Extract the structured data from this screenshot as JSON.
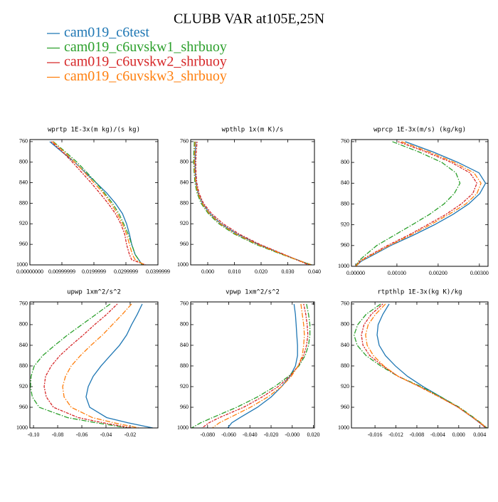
{
  "title": "CLUBB VAR at105E,25N",
  "chart_data": [
    {
      "type": "line",
      "title": "wprtp  1E-3x(m kg)/(s kg)",
      "y": [
        760,
        780,
        800,
        820,
        840,
        860,
        880,
        900,
        920,
        940,
        960,
        980,
        990,
        1000
      ],
      "ylim": [
        756,
        1000
      ],
      "y_inverted": true,
      "yticks": [
        760,
        800,
        840,
        880,
        920,
        960,
        1000
      ],
      "xlim": [
        0,
        0.04
      ],
      "xticks": [
        {
          "value": 0,
          "label": "0.00000000"
        },
        {
          "value": 0.01,
          "label": "0.00999999"
        },
        {
          "value": 0.02,
          "label": "0.0199999"
        },
        {
          "value": 0.03,
          "label": "0.0299999"
        },
        {
          "value": 0.04,
          "label": "0.0399999"
        }
      ],
      "series": [
        {
          "name": "cam019_c6test",
          "color": "#1f77b4",
          "linestyle": "solid",
          "values": [
            0.0062,
            0.01,
            0.014,
            0.0173,
            0.0207,
            0.024,
            0.0267,
            0.0289,
            0.0302,
            0.0311,
            0.0318,
            0.0329,
            0.034,
            0.0351
          ]
        },
        {
          "name": "cam019_c6uvskw1_shrbuoy",
          "color": "#2ca02c",
          "linestyle": "dashdot",
          "values": [
            0.0073,
            0.0111,
            0.0147,
            0.0178,
            0.0207,
            0.0233,
            0.0258,
            0.0278,
            0.0293,
            0.0307,
            0.0318,
            0.0329,
            0.034,
            0.0351
          ]
        },
        {
          "name": "cam019_c6uvskw2_shrbuoy",
          "color": "#d62728",
          "linestyle": "dotted",
          "values": [
            0.0067,
            0.0102,
            0.0133,
            0.0162,
            0.0191,
            0.0218,
            0.0244,
            0.0267,
            0.0284,
            0.0296,
            0.0302,
            0.0311,
            0.0318,
            0.0362
          ]
        },
        {
          "name": "cam019_c6uvskw3_shrbuoy",
          "color": "#ff7f0e",
          "linestyle": "dashdot",
          "values": [
            0.0071,
            0.0107,
            0.014,
            0.0171,
            0.02,
            0.0229,
            0.0253,
            0.0273,
            0.0289,
            0.0302,
            0.0311,
            0.032,
            0.0329,
            0.0358
          ]
        }
      ]
    },
    {
      "type": "line",
      "title": "wpthlp  1x(m K)/s",
      "y": [
        760,
        780,
        800,
        820,
        840,
        860,
        880,
        900,
        920,
        940,
        960,
        980,
        990,
        1000
      ],
      "ylim": [
        756,
        1000
      ],
      "y_inverted": true,
      "yticks": [
        760,
        800,
        840,
        880,
        920,
        960,
        1000
      ],
      "xlim": [
        -0.0064,
        0.04
      ],
      "xticks": [
        {
          "value": 0,
          "label": "0.000"
        },
        {
          "value": 0.01,
          "label": "0.010"
        },
        {
          "value": 0.02,
          "label": "0.020"
        },
        {
          "value": 0.03,
          "label": "0.030"
        },
        {
          "value": 0.04,
          "label": "0.040"
        }
      ],
      "series": [
        {
          "name": "cam019_c6test",
          "color": "#1f77b4",
          "linestyle": "solid",
          "values": [
            -0.0045,
            -0.0047,
            -0.0048,
            -0.0047,
            -0.0044,
            -0.0036,
            -0.002,
            0.0008,
            0.005,
            0.011,
            0.019,
            0.0285,
            0.0335,
            0.0385
          ]
        },
        {
          "name": "cam019_c6uvskw1_shrbuoy",
          "color": "#2ca02c",
          "linestyle": "dashdot",
          "values": [
            -0.005,
            -0.0052,
            -0.0053,
            -0.0051,
            -0.0048,
            -0.004,
            -0.0025,
            0.0002,
            0.0042,
            0.01,
            0.018,
            0.028,
            0.0332,
            0.039
          ]
        },
        {
          "name": "cam019_c6uvskw2_shrbuoy",
          "color": "#d62728",
          "linestyle": "dotted",
          "values": [
            -0.004,
            -0.0043,
            -0.0045,
            -0.0044,
            -0.0041,
            -0.0033,
            -0.0016,
            0.0014,
            0.0058,
            0.0118,
            0.0195,
            0.0288,
            0.0333,
            0.0378
          ]
        },
        {
          "name": "cam019_c6uvskw3_shrbuoy",
          "color": "#ff7f0e",
          "linestyle": "dashdot",
          "values": [
            -0.0047,
            -0.0049,
            -0.005,
            -0.0049,
            -0.0045,
            -0.0037,
            -0.0021,
            0.0006,
            0.0047,
            0.0106,
            0.0186,
            0.0283,
            0.0334,
            0.0388
          ]
        }
      ]
    },
    {
      "type": "line",
      "title": "wprcp  1E-3x(m/s) (kg/kg)",
      "y": [
        760,
        780,
        800,
        820,
        840,
        860,
        880,
        900,
        920,
        940,
        960,
        980,
        990,
        1000
      ],
      "ylim": [
        756,
        1000
      ],
      "y_inverted": true,
      "yticks": [
        760,
        800,
        840,
        880,
        920,
        960,
        1000
      ],
      "xlim": [
        -0.000103,
        0.00321
      ],
      "xticks": [
        {
          "value": 0,
          "label": "0.00000"
        },
        {
          "value": 0.001,
          "label": "0.00100"
        },
        {
          "value": 0.002,
          "label": "0.00200"
        },
        {
          "value": 0.003,
          "label": "0.00300"
        }
      ],
      "series": [
        {
          "name": "cam019_c6test",
          "color": "#1f77b4",
          "linestyle": "solid",
          "values": [
            0.0012,
            0.00188,
            0.00248,
            0.00299,
            0.00315,
            0.00301,
            0.00274,
            0.00236,
            0.00191,
            0.0014,
            0.00085,
            0.00038,
            0.00014,
            0.0
          ]
        },
        {
          "name": "cam019_c6uvskw1_shrbuoy",
          "color": "#2ca02c",
          "linestyle": "dashdot",
          "values": [
            0.00089,
            0.00154,
            0.00209,
            0.00243,
            0.00253,
            0.00239,
            0.00214,
            0.00179,
            0.00137,
            0.00094,
            0.00051,
            0.00021,
            7e-05,
            0.0
          ]
        },
        {
          "name": "cam019_c6uvskw2_shrbuoy",
          "color": "#d62728",
          "linestyle": "dotted",
          "values": [
            0.00103,
            0.00171,
            0.00232,
            0.00277,
            0.00294,
            0.00284,
            0.00256,
            0.00219,
            0.00174,
            0.00128,
            0.00077,
            0.00031,
            0.0001,
            0.0
          ]
        },
        {
          "name": "cam019_c6uvskw3_shrbuoy",
          "color": "#ff7f0e",
          "linestyle": "dashdot",
          "values": [
            0.00111,
            0.00179,
            0.00239,
            0.00287,
            0.00304,
            0.00294,
            0.00267,
            0.00226,
            0.00181,
            0.00133,
            0.00082,
            0.00034,
            0.00012,
            0.0
          ]
        }
      ]
    },
    {
      "type": "line",
      "title": "upwp  1xm^2/s^2",
      "y": [
        760,
        780,
        800,
        820,
        840,
        860,
        880,
        900,
        920,
        940,
        960,
        980,
        990,
        1000
      ],
      "ylim": [
        756,
        1000
      ],
      "y_inverted": true,
      "yticks": [
        760,
        800,
        840,
        880,
        920,
        960,
        1000
      ],
      "xlim": [
        -0.103,
        0.003
      ],
      "xticks": [
        {
          "value": -0.1,
          "label": "-0.10"
        },
        {
          "value": -0.08,
          "label": "-0.08"
        },
        {
          "value": -0.06,
          "label": "-0.06"
        },
        {
          "value": -0.04,
          "label": "-0.04"
        },
        {
          "value": -0.02,
          "label": "-0.02"
        }
      ],
      "series": [
        {
          "name": "cam019_c6test",
          "color": "#1f77b4",
          "linestyle": "solid",
          "values": [
            -0.01,
            -0.0141,
            -0.0188,
            -0.0229,
            -0.0288,
            -0.0365,
            -0.0441,
            -0.0506,
            -0.0547,
            -0.0565,
            -0.0535,
            -0.0394,
            -0.0218,
            -0.0012
          ]
        },
        {
          "name": "cam019_c6uvskw1_shrbuoy",
          "color": "#2ca02c",
          "linestyle": "dashdot",
          "values": [
            -0.0365,
            -0.0482,
            -0.06,
            -0.0718,
            -0.0824,
            -0.0924,
            -0.0994,
            -0.102,
            -0.1025,
            -0.101,
            -0.0953,
            -0.0718,
            -0.0482,
            -0.0218
          ]
        },
        {
          "name": "cam019_c6uvskw2_shrbuoy",
          "color": "#d62728",
          "linestyle": "dotted",
          "values": [
            -0.0306,
            -0.0394,
            -0.0494,
            -0.0588,
            -0.0688,
            -0.0782,
            -0.0853,
            -0.09,
            -0.0912,
            -0.0894,
            -0.0835,
            -0.0629,
            -0.0424,
            -0.0188
          ]
        },
        {
          "name": "cam019_c6uvskw3_shrbuoy",
          "color": "#ff7f0e",
          "linestyle": "dashdot",
          "values": [
            -0.0188,
            -0.0265,
            -0.0347,
            -0.0429,
            -0.0524,
            -0.0612,
            -0.0688,
            -0.0735,
            -0.0759,
            -0.0747,
            -0.0688,
            -0.0512,
            -0.0335,
            -0.0129
          ]
        }
      ]
    },
    {
      "type": "line",
      "title": "vpwp  1xm^2/s^2",
      "y": [
        760,
        780,
        800,
        820,
        840,
        860,
        880,
        900,
        920,
        940,
        960,
        980,
        990,
        1000
      ],
      "ylim": [
        756,
        1000
      ],
      "y_inverted": true,
      "yticks": [
        760,
        800,
        840,
        880,
        920,
        960,
        1000
      ],
      "xlim": [
        -0.096,
        0.021
      ],
      "xticks": [
        {
          "value": -0.08,
          "label": "-0.080"
        },
        {
          "value": -0.06,
          "label": "-0.060"
        },
        {
          "value": -0.04,
          "label": "-0.040"
        },
        {
          "value": -0.02,
          "label": "-0.020"
        },
        {
          "value": 0,
          "label": "-0.000"
        },
        {
          "value": 0.02,
          "label": "0.020"
        }
      ],
      "series": [
        {
          "name": "cam019_c6test",
          "color": "#1f77b4",
          "linestyle": "solid",
          "values": [
            0.0017,
            0.003,
            0.0037,
            0.0043,
            0.005,
            0.005,
            0.003,
            -0.0022,
            -0.0101,
            -0.0199,
            -0.0329,
            -0.0493,
            -0.0571,
            -0.061
          ]
        },
        {
          "name": "cam019_c6uvskw1_shrbuoy",
          "color": "#2ca02c",
          "linestyle": "dashdot",
          "values": [
            0.0135,
            0.0154,
            0.0167,
            0.0167,
            0.0154,
            0.0122,
            0.0063,
            -0.0035,
            -0.0166,
            -0.0329,
            -0.0525,
            -0.0754,
            -0.0865,
            -0.095
          ]
        },
        {
          "name": "cam019_c6uvskw2_shrbuoy",
          "color": "#d62728",
          "linestyle": "dotted",
          "values": [
            0.0108,
            0.0128,
            0.0141,
            0.0148,
            0.0135,
            0.0108,
            0.0056,
            -0.0022,
            -0.0133,
            -0.0284,
            -0.046,
            -0.0689,
            -0.0787,
            -0.0852
          ]
        },
        {
          "name": "cam019_c6uvskw3_shrbuoy",
          "color": "#ff7f0e",
          "linestyle": "dashdot",
          "values": [
            0.0082,
            0.0095,
            0.0108,
            0.0115,
            0.0108,
            0.0095,
            0.0056,
            -0.0009,
            -0.0101,
            -0.0231,
            -0.0395,
            -0.0591,
            -0.0689,
            -0.0754
          ]
        }
      ]
    },
    {
      "type": "line",
      "title": "rtpthlp  1E-3x(kg K)/kg",
      "y": [
        760,
        780,
        800,
        820,
        840,
        860,
        880,
        900,
        920,
        940,
        960,
        980,
        990,
        1000
      ],
      "ylim": [
        756,
        1000
      ],
      "y_inverted": true,
      "yticks": [
        760,
        800,
        840,
        880,
        920,
        960,
        1000
      ],
      "xlim": [
        -0.0205,
        0.0056
      ],
      "xticks": [
        {
          "value": -0.016,
          "label": "-0.016"
        },
        {
          "value": -0.012,
          "label": "-0.012"
        },
        {
          "value": -0.008,
          "label": "-0.008"
        },
        {
          "value": -0.004,
          "label": "-0.004"
        },
        {
          "value": 0,
          "label": "0.000"
        },
        {
          "value": 0.004,
          "label": "0.004"
        }
      ],
      "series": [
        {
          "name": "cam019_c6test",
          "color": "#1f77b4",
          "linestyle": "solid",
          "values": [
            -0.0133,
            -0.0145,
            -0.0154,
            -0.0156,
            -0.0152,
            -0.014,
            -0.0121,
            -0.0098,
            -0.0068,
            -0.0034,
            -0.0001,
            0.0027,
            0.004,
            0.0052
          ]
        },
        {
          "name": "cam019_c6uvskw1_shrbuoy",
          "color": "#2ca02c",
          "linestyle": "dashdot",
          "values": [
            -0.0149,
            -0.0177,
            -0.0193,
            -0.02,
            -0.0194,
            -0.0177,
            -0.0149,
            -0.0116,
            -0.0072,
            -0.0034,
            0.0001,
            0.0029,
            0.0042,
            0.0054
          ]
        },
        {
          "name": "cam019_c6uvskw2_shrbuoy",
          "color": "#d62728",
          "linestyle": "dotted",
          "values": [
            -0.0145,
            -0.0167,
            -0.0181,
            -0.0186,
            -0.0183,
            -0.017,
            -0.0145,
            -0.0116,
            -0.0075,
            -0.0037,
            -0.0001,
            0.0027,
            0.004,
            0.0052
          ]
        },
        {
          "name": "cam019_c6uvskw3_shrbuoy",
          "color": "#ff7f0e",
          "linestyle": "dashdot",
          "values": [
            -0.014,
            -0.0159,
            -0.0173,
            -0.0178,
            -0.0175,
            -0.0163,
            -0.0143,
            -0.0116,
            -0.0075,
            -0.0037,
            -0.0001,
            0.0028,
            0.0041,
            0.0054
          ]
        }
      ]
    }
  ]
}
